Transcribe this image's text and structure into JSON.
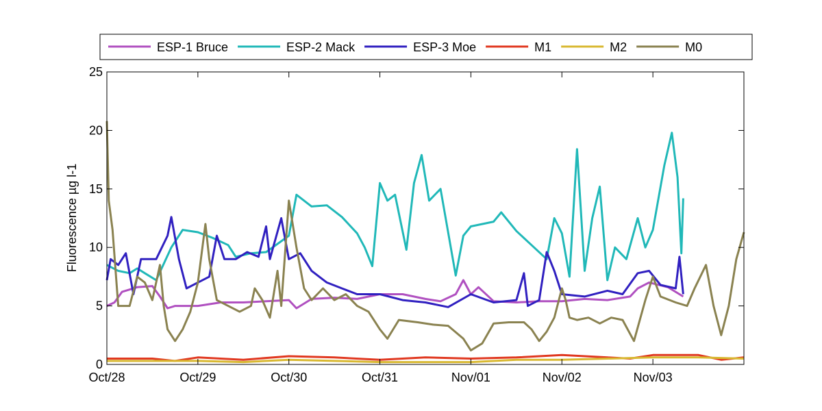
{
  "chart_data": {
    "type": "line",
    "title": "",
    "xlabel": "",
    "ylabel": "Fluorescence µg l-1",
    "ylim": [
      0,
      25
    ],
    "yticks": [
      0,
      5,
      10,
      15,
      20,
      25
    ],
    "xlim": [
      "2010-10-28",
      "2010-11-04"
    ],
    "xticks": [
      {
        "x": "2010-10-28",
        "label": "Oct/28"
      },
      {
        "x": "2010-10-29",
        "label": "Oct/29"
      },
      {
        "x": "2010-10-30",
        "label": "Oct/30"
      },
      {
        "x": "2010-10-31",
        "label": "Oct/31"
      },
      {
        "x": "2010-11-01",
        "label": "Nov/01"
      },
      {
        "x": "2010-11-02",
        "label": "Nov/02"
      },
      {
        "x": "2010-11-03",
        "label": "Nov/03"
      }
    ],
    "grid": false,
    "legend": "top, horizontal",
    "series": [
      {
        "name": "ESP-1 Bruce",
        "color": "#b050c0",
        "points": [
          [
            "2010-10-28T00:00",
            5.0
          ],
          [
            "2010-10-28T02:00",
            5.3
          ],
          [
            "2010-10-28T04:00",
            6.2
          ],
          [
            "2010-10-28T08:00",
            6.6
          ],
          [
            "2010-10-28T12:00",
            6.7
          ],
          [
            "2010-10-28T14:00",
            5.8
          ],
          [
            "2010-10-28T16:00",
            4.8
          ],
          [
            "2010-10-28T18:00",
            5.0
          ],
          [
            "2010-10-29T00:00",
            5.0
          ],
          [
            "2010-10-29T06:00",
            5.3
          ],
          [
            "2010-10-29T12:00",
            5.3
          ],
          [
            "2010-10-29T18:00",
            5.4
          ],
          [
            "2010-10-30T00:00",
            5.5
          ],
          [
            "2010-10-30T02:00",
            4.8
          ],
          [
            "2010-10-30T06:00",
            5.6
          ],
          [
            "2010-10-30T12:00",
            5.7
          ],
          [
            "2010-10-30T18:00",
            5.6
          ],
          [
            "2010-10-31T00:00",
            6.0
          ],
          [
            "2010-10-31T06:00",
            6.0
          ],
          [
            "2010-10-31T12:00",
            5.6
          ],
          [
            "2010-10-31T16:00",
            5.4
          ],
          [
            "2010-10-31T20:00",
            6.0
          ],
          [
            "2010-10-31T22:00",
            7.2
          ],
          [
            "2010-11-01T00:00",
            6.0
          ],
          [
            "2010-11-01T02:00",
            6.6
          ],
          [
            "2010-11-01T06:00",
            5.4
          ],
          [
            "2010-11-01T12:00",
            5.3
          ],
          [
            "2010-11-01T18:00",
            5.4
          ],
          [
            "2010-11-02T00:00",
            5.4
          ],
          [
            "2010-11-02T06:00",
            5.6
          ],
          [
            "2010-11-02T12:00",
            5.5
          ],
          [
            "2010-11-02T18:00",
            5.8
          ],
          [
            "2010-11-02T20:00",
            6.5
          ],
          [
            "2010-11-02T23:00",
            7.0
          ],
          [
            "2010-11-03T04:00",
            6.6
          ],
          [
            "2010-11-03T08:00",
            5.8
          ]
        ]
      },
      {
        "name": "ESP-2 Mack",
        "color": "#20b8b8",
        "points": [
          [
            "2010-10-28T00:00",
            8.5
          ],
          [
            "2010-10-28T03:00",
            8.0
          ],
          [
            "2010-10-28T06:00",
            7.8
          ],
          [
            "2010-10-28T08:00",
            8.2
          ],
          [
            "2010-10-28T10:00",
            7.8
          ],
          [
            "2010-10-28T13:00",
            7.2
          ],
          [
            "2010-10-28T17:00",
            10.0
          ],
          [
            "2010-10-28T20:00",
            11.5
          ],
          [
            "2010-10-29T00:00",
            11.3
          ],
          [
            "2010-10-29T04:00",
            10.8
          ],
          [
            "2010-10-29T08:00",
            10.2
          ],
          [
            "2010-10-29T10:00",
            9.2
          ],
          [
            "2010-10-29T14:00",
            9.5
          ],
          [
            "2010-10-29T18:00",
            9.6
          ],
          [
            "2010-10-30T00:00",
            11.0
          ],
          [
            "2010-10-30T02:00",
            14.5
          ],
          [
            "2010-10-30T06:00",
            13.5
          ],
          [
            "2010-10-30T10:00",
            13.6
          ],
          [
            "2010-10-30T14:00",
            12.6
          ],
          [
            "2010-10-30T18:00",
            11.2
          ],
          [
            "2010-10-30T20:00",
            10.0
          ],
          [
            "2010-10-30T22:00",
            8.4
          ],
          [
            "2010-10-31T00:00",
            15.5
          ],
          [
            "2010-10-31T02:00",
            14.0
          ],
          [
            "2010-10-31T04:00",
            14.5
          ],
          [
            "2010-10-31T07:00",
            9.8
          ],
          [
            "2010-10-31T09:00",
            15.5
          ],
          [
            "2010-10-31T11:00",
            17.9
          ],
          [
            "2010-10-31T13:00",
            14.0
          ],
          [
            "2010-10-31T16:00",
            15.0
          ],
          [
            "2010-10-31T18:00",
            11.3
          ],
          [
            "2010-10-31T20:00",
            7.6
          ],
          [
            "2010-10-31T22:00",
            11.0
          ],
          [
            "2010-11-01T00:00",
            11.8
          ],
          [
            "2010-11-01T06:00",
            12.2
          ],
          [
            "2010-11-01T08:00",
            13.0
          ],
          [
            "2010-11-01T12:00",
            11.4
          ],
          [
            "2010-11-01T16:00",
            10.2
          ],
          [
            "2010-11-01T20:00",
            9.0
          ],
          [
            "2010-11-01T22:00",
            12.5
          ],
          [
            "2010-11-02T00:00",
            11.2
          ],
          [
            "2010-11-02T02:00",
            7.5
          ],
          [
            "2010-11-02T04:00",
            18.4
          ],
          [
            "2010-11-02T06:00",
            8.0
          ],
          [
            "2010-11-02T08:00",
            12.5
          ],
          [
            "2010-11-02T10:00",
            15.2
          ],
          [
            "2010-11-02T12:00",
            7.2
          ],
          [
            "2010-11-02T14:00",
            10.0
          ],
          [
            "2010-11-02T17:00",
            9.0
          ],
          [
            "2010-11-02T20:00",
            12.5
          ],
          [
            "2010-11-02T22:00",
            10.0
          ],
          [
            "2010-11-03T00:00",
            11.5
          ],
          [
            "2010-11-03T03:00",
            17.0
          ],
          [
            "2010-11-03T05:00",
            19.8
          ],
          [
            "2010-11-03T06:30",
            16.0
          ],
          [
            "2010-11-03T07:30",
            9.5
          ],
          [
            "2010-11-03T08:00",
            14.2
          ]
        ]
      },
      {
        "name": "ESP-3 Moe",
        "color": "#3020c0",
        "points": [
          [
            "2010-10-28T00:00",
            7.2
          ],
          [
            "2010-10-28T01:00",
            9.0
          ],
          [
            "2010-10-28T03:00",
            8.5
          ],
          [
            "2010-10-28T05:00",
            9.5
          ],
          [
            "2010-10-28T07:00",
            6.0
          ],
          [
            "2010-10-28T09:00",
            9.0
          ],
          [
            "2010-10-28T13:00",
            9.0
          ],
          [
            "2010-10-28T16:00",
            11.0
          ],
          [
            "2010-10-28T17:00",
            12.6
          ],
          [
            "2010-10-28T19:00",
            9.0
          ],
          [
            "2010-10-28T21:00",
            6.5
          ],
          [
            "2010-10-29T00:00",
            7.0
          ],
          [
            "2010-10-29T03:00",
            7.5
          ],
          [
            "2010-10-29T05:00",
            11.0
          ],
          [
            "2010-10-29T07:00",
            9.0
          ],
          [
            "2010-10-29T10:00",
            9.0
          ],
          [
            "2010-10-29T13:00",
            9.6
          ],
          [
            "2010-10-29T16:00",
            9.2
          ],
          [
            "2010-10-29T18:00",
            11.8
          ],
          [
            "2010-10-29T19:00",
            9.0
          ],
          [
            "2010-10-29T22:00",
            12.5
          ],
          [
            "2010-10-30T00:00",
            9.0
          ],
          [
            "2010-10-30T03:00",
            9.5
          ],
          [
            "2010-10-30T06:00",
            8.0
          ],
          [
            "2010-10-30T10:00",
            7.0
          ],
          [
            "2010-10-30T14:00",
            6.5
          ],
          [
            "2010-10-30T18:00",
            6.0
          ],
          [
            "2010-10-31T00:00",
            6.0
          ],
          [
            "2010-10-31T06:00",
            5.5
          ],
          [
            "2010-10-31T12:00",
            5.3
          ],
          [
            "2010-10-31T18:00",
            4.9
          ],
          [
            "2010-11-01T00:00",
            6.0
          ],
          [
            "2010-11-01T06:00",
            5.3
          ],
          [
            "2010-11-01T12:00",
            5.5
          ],
          [
            "2010-11-01T14:00",
            7.8
          ],
          [
            "2010-11-01T15:00",
            5.0
          ],
          [
            "2010-11-01T18:00",
            5.5
          ],
          [
            "2010-11-01T20:00",
            9.6
          ],
          [
            "2010-11-01T22:00",
            8.0
          ],
          [
            "2010-11-02T00:00",
            6.0
          ],
          [
            "2010-11-02T06:00",
            5.8
          ],
          [
            "2010-11-02T12:00",
            6.3
          ],
          [
            "2010-11-02T16:00",
            6.0
          ],
          [
            "2010-11-02T20:00",
            7.8
          ],
          [
            "2010-11-02T23:00",
            8.0
          ],
          [
            "2010-11-03T02:00",
            6.8
          ],
          [
            "2010-11-03T06:00",
            6.5
          ],
          [
            "2010-11-03T07:00",
            9.2
          ],
          [
            "2010-11-03T08:00",
            6.0
          ]
        ]
      },
      {
        "name": "M1",
        "color": "#e03820",
        "points": [
          [
            "2010-10-28T00:00",
            0.5
          ],
          [
            "2010-10-28T12:00",
            0.5
          ],
          [
            "2010-10-28T18:00",
            0.3
          ],
          [
            "2010-10-29T00:00",
            0.6
          ],
          [
            "2010-10-29T12:00",
            0.4
          ],
          [
            "2010-10-30T00:00",
            0.7
          ],
          [
            "2010-10-30T12:00",
            0.6
          ],
          [
            "2010-10-31T00:00",
            0.4
          ],
          [
            "2010-10-31T12:00",
            0.6
          ],
          [
            "2010-11-01T00:00",
            0.5
          ],
          [
            "2010-11-01T12:00",
            0.6
          ],
          [
            "2010-11-02T00:00",
            0.8
          ],
          [
            "2010-11-02T12:00",
            0.6
          ],
          [
            "2010-11-02T18:00",
            0.5
          ],
          [
            "2010-11-03T00:00",
            0.8
          ],
          [
            "2010-11-03T12:00",
            0.8
          ],
          [
            "2010-11-03T18:00",
            0.4
          ],
          [
            "2010-11-04T00:00",
            0.6
          ]
        ]
      },
      {
        "name": "M2",
        "color": "#d8b830",
        "points": [
          [
            "2010-10-28T00:00",
            0.3
          ],
          [
            "2010-10-28T12:00",
            0.3
          ],
          [
            "2010-10-29T00:00",
            0.3
          ],
          [
            "2010-10-29T12:00",
            0.2
          ],
          [
            "2010-10-30T00:00",
            0.4
          ],
          [
            "2010-10-30T12:00",
            0.3
          ],
          [
            "2010-10-31T00:00",
            0.2
          ],
          [
            "2010-10-31T12:00",
            0.2
          ],
          [
            "2010-11-01T00:00",
            0.2
          ],
          [
            "2010-11-01T12:00",
            0.4
          ],
          [
            "2010-11-02T00:00",
            0.4
          ],
          [
            "2010-11-02T12:00",
            0.5
          ],
          [
            "2010-11-03T00:00",
            0.6
          ],
          [
            "2010-11-03T12:00",
            0.6
          ],
          [
            "2010-11-04T00:00",
            0.5
          ]
        ]
      },
      {
        "name": "M0",
        "color": "#8a8250",
        "points": [
          [
            "2010-10-28T00:00",
            20.8
          ],
          [
            "2010-10-28T00:30",
            14.0
          ],
          [
            "2010-10-28T01:30",
            11.5
          ],
          [
            "2010-10-28T03:00",
            5.0
          ],
          [
            "2010-10-28T06:00",
            5.0
          ],
          [
            "2010-10-28T08:00",
            7.5
          ],
          [
            "2010-10-28T10:00",
            7.0
          ],
          [
            "2010-10-28T12:00",
            5.5
          ],
          [
            "2010-10-28T14:00",
            8.5
          ],
          [
            "2010-10-28T15:00",
            5.0
          ],
          [
            "2010-10-28T16:00",
            3.0
          ],
          [
            "2010-10-28T18:00",
            2.0
          ],
          [
            "2010-10-28T20:00",
            3.0
          ],
          [
            "2010-10-28T22:00",
            4.5
          ],
          [
            "2010-10-29T00:00",
            7.0
          ],
          [
            "2010-10-29T02:00",
            12.0
          ],
          [
            "2010-10-29T03:00",
            9.0
          ],
          [
            "2010-10-29T05:00",
            5.5
          ],
          [
            "2010-10-29T08:00",
            5.0
          ],
          [
            "2010-10-29T11:00",
            4.5
          ],
          [
            "2010-10-29T14:00",
            5.0
          ],
          [
            "2010-10-29T15:00",
            6.5
          ],
          [
            "2010-10-29T17:00",
            5.5
          ],
          [
            "2010-10-29T19:00",
            4.0
          ],
          [
            "2010-10-29T21:00",
            8.0
          ],
          [
            "2010-10-29T22:00",
            5.0
          ],
          [
            "2010-10-30T00:00",
            14.0
          ],
          [
            "2010-10-30T02:00",
            10.0
          ],
          [
            "2010-10-30T04:00",
            6.5
          ],
          [
            "2010-10-30T06:00",
            5.5
          ],
          [
            "2010-10-30T09:00",
            6.5
          ],
          [
            "2010-10-30T12:00",
            5.5
          ],
          [
            "2010-10-30T15:00",
            6.0
          ],
          [
            "2010-10-30T18:00",
            5.0
          ],
          [
            "2010-10-30T21:00",
            4.5
          ],
          [
            "2010-10-31T00:00",
            3.0
          ],
          [
            "2010-10-31T02:00",
            2.2
          ],
          [
            "2010-10-31T05:00",
            3.8
          ],
          [
            "2010-10-31T10:00",
            3.6
          ],
          [
            "2010-10-31T14:00",
            3.4
          ],
          [
            "2010-10-31T18:00",
            3.3
          ],
          [
            "2010-10-31T22:00",
            2.2
          ],
          [
            "2010-11-01T00:00",
            1.2
          ],
          [
            "2010-11-01T03:00",
            1.8
          ],
          [
            "2010-11-01T06:00",
            3.5
          ],
          [
            "2010-11-01T10:00",
            3.6
          ],
          [
            "2010-11-01T14:00",
            3.6
          ],
          [
            "2010-11-01T16:00",
            3.0
          ],
          [
            "2010-11-01T18:00",
            2.0
          ],
          [
            "2010-11-01T20:00",
            2.8
          ],
          [
            "2010-11-01T22:00",
            4.0
          ],
          [
            "2010-11-02T00:00",
            6.5
          ],
          [
            "2010-11-02T01:00",
            5.5
          ],
          [
            "2010-11-02T02:00",
            4.0
          ],
          [
            "2010-11-02T04:00",
            3.8
          ],
          [
            "2010-11-02T07:00",
            4.0
          ],
          [
            "2010-11-02T10:00",
            3.5
          ],
          [
            "2010-11-02T13:00",
            4.0
          ],
          [
            "2010-11-02T16:00",
            3.8
          ],
          [
            "2010-11-02T19:00",
            2.0
          ],
          [
            "2010-11-02T22:00",
            5.5
          ],
          [
            "2010-11-03T00:00",
            7.5
          ],
          [
            "2010-11-03T02:00",
            5.8
          ],
          [
            "2010-11-03T06:00",
            5.3
          ],
          [
            "2010-11-03T09:00",
            5.0
          ],
          [
            "2010-11-03T11:00",
            6.5
          ],
          [
            "2010-11-03T14:00",
            8.5
          ],
          [
            "2010-11-03T16:00",
            5.0
          ],
          [
            "2010-11-03T18:00",
            2.5
          ],
          [
            "2010-11-03T20:00",
            5.0
          ],
          [
            "2010-11-03T22:00",
            9.0
          ],
          [
            "2010-11-04T00:00",
            11.3
          ]
        ]
      }
    ]
  }
}
